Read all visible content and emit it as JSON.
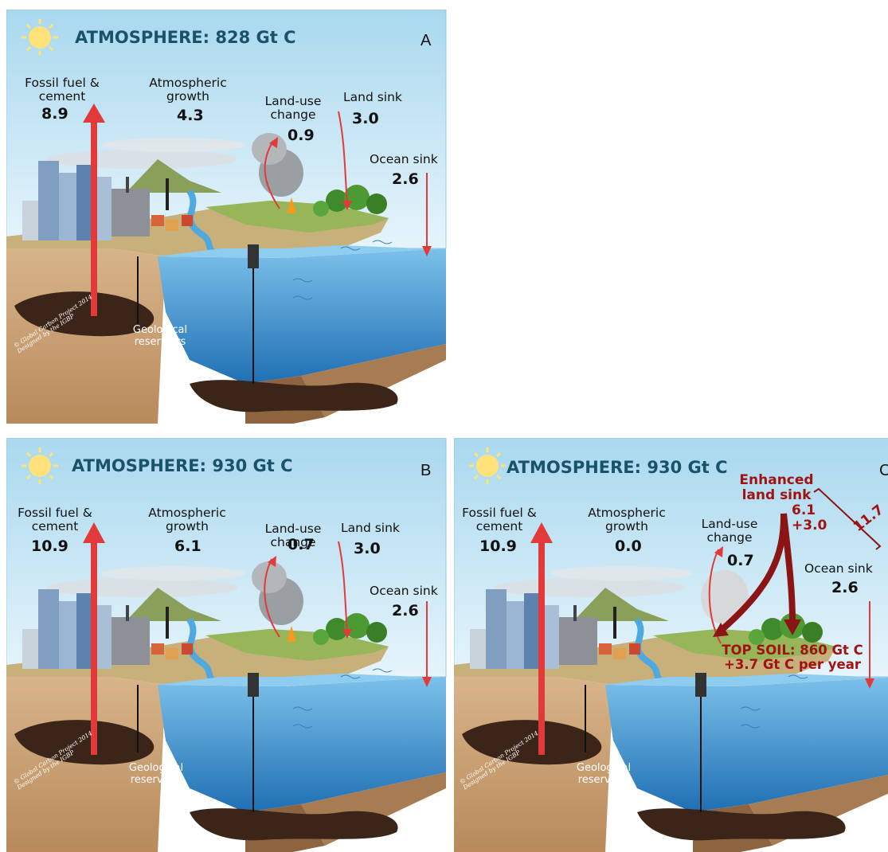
{
  "panels": {
    "a": {
      "letter": "A",
      "atmosphere": "ATMOSPHERE: 828 Gt C",
      "fossil_label_1": "Fossil fuel &",
      "fossil_label_2": "cement",
      "fossil_value": "8.9",
      "growth_label_1": "Atmospheric",
      "growth_label_2": "growth",
      "growth_value": "4.3",
      "landuse_label_1": "Land-use",
      "landuse_label_2": "change",
      "landuse_value": "0.9",
      "landsink_label": "Land sink",
      "landsink_value": "3.0",
      "ocean_label": "Ocean sink",
      "ocean_value": "2.6",
      "geo_1": "Geological",
      "geo_2": "reservoirs",
      "credit_1": "© Global Carbon Project 2014",
      "credit_2": "Designed by the IGBP"
    },
    "b": {
      "letter": "B",
      "atmosphere": "ATMOSPHERE: 930 Gt C",
      "fossil_label_1": "Fossil fuel &",
      "fossil_label_2": "cement",
      "fossil_value": "10.9",
      "growth_label_1": "Atmospheric",
      "growth_label_2": "growth",
      "growth_value": "6.1",
      "landuse_label_1": "Land-use",
      "landuse_label_2": "change",
      "landuse_value": "0.7",
      "landsink_label": "Land sink",
      "landsink_value": "3.0",
      "ocean_label": "Ocean sink",
      "ocean_value": "2.6",
      "geo_1": "Geological",
      "geo_2": "reservoirs",
      "credit_1": "© Global Carbon Project 2014",
      "credit_2": "Designed by the IGBP"
    },
    "c": {
      "letter": "C",
      "atmosphere": "ATMOSPHERE: 930 Gt C",
      "fossil_label_1": "Fossil fuel &",
      "fossil_label_2": "cement",
      "fossil_value": "10.9",
      "growth_label_1": "Atmospheric",
      "growth_label_2": "growth",
      "growth_value": "0.0",
      "landuse_label_1": "Land-use",
      "landuse_label_2": "change",
      "landuse_value": "0.7",
      "enhanced_1": "Enhanced",
      "enhanced_2": "land sink",
      "enhanced_val_1": "6.1",
      "enhanced_val_2": "+3.0",
      "bracket_value": "11.7",
      "ocean_label": "Ocean sink",
      "ocean_value": "2.6",
      "topsoil_1": "TOP SOIL: 860 Gt C",
      "topsoil_2": "+3.7 Gt C per year",
      "geo_1": "Geological",
      "geo_2": "reservoirs",
      "credit_1": "© Global Carbon Project 2014",
      "credit_2": "Designed by the IGBP"
    }
  },
  "colors": {
    "sky": "#bfe3f2",
    "atmosphere_text": "#1a5368",
    "flux_arrow": "#e23a3a",
    "enhanced": "#8b1414",
    "ocean": "#3f9bd6",
    "soil": "#c49a6c",
    "reservoir": "#3b2418"
  }
}
